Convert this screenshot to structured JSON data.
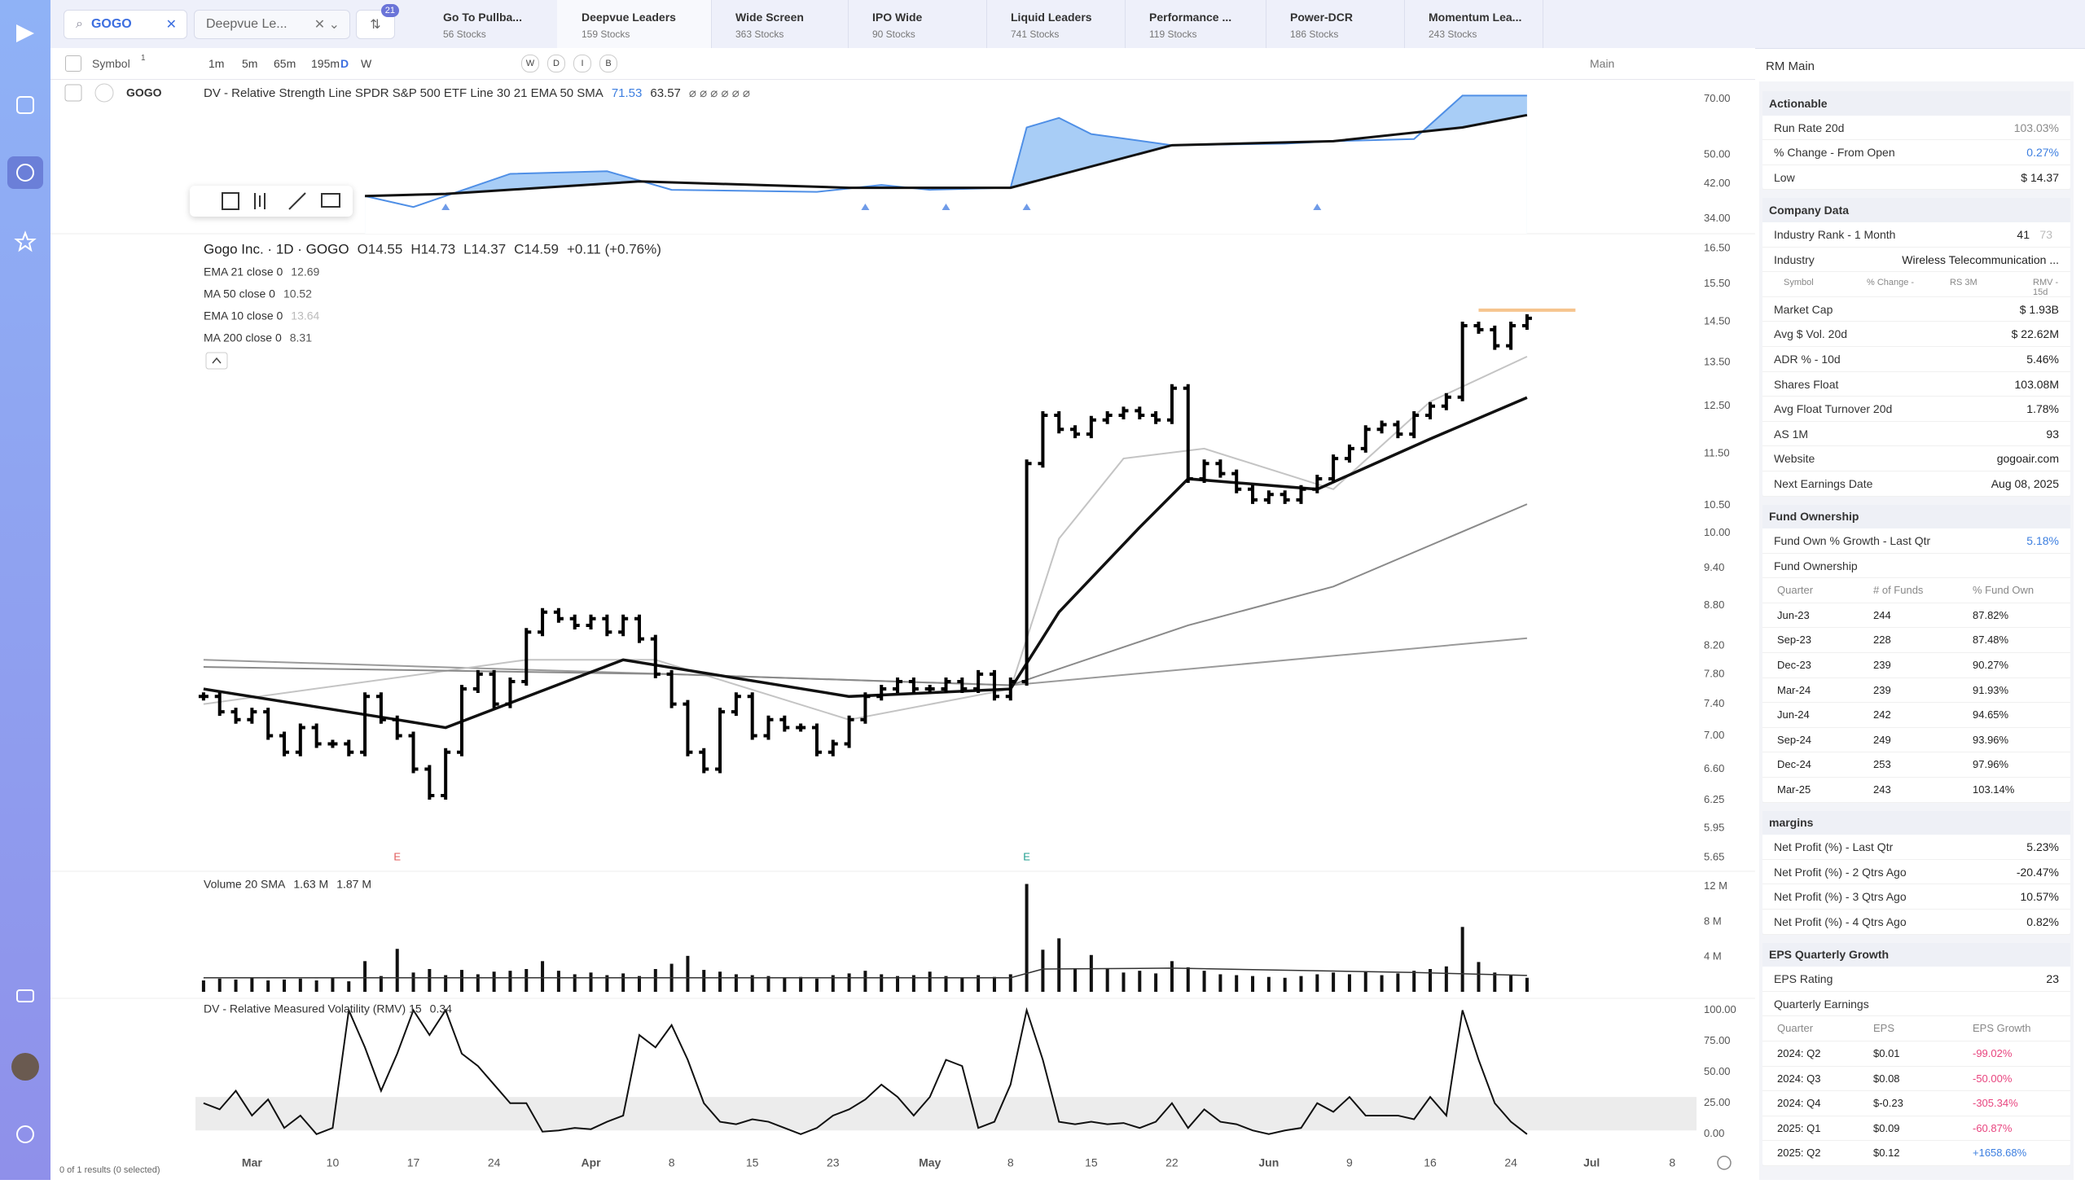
{
  "top_bar": {
    "search": "GOGO",
    "watchlist": "Deepvue Le...",
    "badge": "21",
    "active_tab": 1,
    "tabs": [
      {
        "name": "Go To Pullba...",
        "count": "56 Stocks"
      },
      {
        "name": "Deepvue Leaders",
        "count": "159 Stocks"
      },
      {
        "name": "Wide Screen",
        "count": "363 Stocks"
      },
      {
        "name": "IPO Wide",
        "count": "90 Stocks"
      },
      {
        "name": "Liquid Leaders",
        "count": "741 Stocks"
      },
      {
        "name": "Performance ...",
        "count": "119 Stocks"
      },
      {
        "name": "Power-DCR",
        "count": "186 Stocks"
      },
      {
        "name": "Momentum Lea...",
        "count": "243 Stocks"
      }
    ]
  },
  "toolbar": {
    "symbol_label": "Symbol",
    "symbol_count": "1",
    "timeframes": [
      "1m",
      "5m",
      "65m",
      "195m",
      "D",
      "W"
    ],
    "toggles": [
      "W",
      "D",
      "I",
      "B"
    ],
    "layout": "Main"
  },
  "watchlist_rows": [
    {
      "symbol": "GOGO"
    }
  ],
  "footer": "0 of 1 results (0 selected)",
  "chart_data": [
    {
      "type": "area",
      "title": "DV - Relative Strength Line SPDR S&P 500 ETF Line 30 21 EMA 50 SMA",
      "legend_values": [
        71.53,
        63.57
      ],
      "legend_symbols": "⌀ ⌀ ⌀ ⌀ ⌀ ⌀",
      "log": true,
      "ylim": [
        32,
        76
      ],
      "yticks": [
        {
          "value": 70,
          "label": "70.00"
        },
        {
          "value": 50,
          "label": "50.00"
        },
        {
          "value": 42,
          "label": "42.00"
        },
        {
          "value": 34,
          "label": "34.00"
        }
      ],
      "series": [
        {
          "color": "#4f8fe6",
          "fill": "#a8cdf6",
          "x": [
            10,
            13,
            19,
            25,
            29,
            38,
            42,
            45,
            50,
            51,
            53,
            55,
            60,
            67,
            70,
            75,
            78,
            82
          ],
          "values": [
            39,
            36.5,
            44.6,
            45.3,
            40.5,
            40,
            41.7,
            40.5,
            41,
            59,
            62.5,
            56.7,
            53,
            53.5,
            54.3,
            55,
            71.5,
            71.53
          ]
        },
        {
          "color": "#111111",
          "x": [
            10,
            15,
            27,
            40,
            50,
            60,
            70,
            78,
            82
          ],
          "values": [
            39,
            39.5,
            42.6,
            41,
            41,
            53,
            54.3,
            59,
            63.57
          ]
        }
      ],
      "markers_x": [
        15,
        41,
        46,
        51,
        69
      ],
      "marker_color": "#6f9be8"
    },
    {
      "type": "price",
      "title": "Gogo Inc. · 1D · GOGO",
      "quote": [
        "O14.55",
        "H14.73",
        "L14.37",
        "C14.59",
        "+0.11 (+0.76%)"
      ],
      "log": true,
      "ylim": [
        5.65,
        16.5
      ],
      "color": "#000000",
      "yticks": [
        {
          "value": 16.5,
          "label": "16.50"
        },
        {
          "value": 15.5,
          "label": "15.50"
        },
        {
          "value": 14.5,
          "label": "14.50"
        },
        {
          "value": 13.5,
          "label": "13.50"
        },
        {
          "value": 12.5,
          "label": "12.50"
        },
        {
          "value": 11.5,
          "label": "11.50"
        },
        {
          "value": 10.5,
          "label": "10.50"
        },
        {
          "value": 10,
          "label": "10.00"
        },
        {
          "value": 9.4,
          "label": "9.40"
        },
        {
          "value": 8.8,
          "label": "8.80"
        },
        {
          "value": 8.2,
          "label": "8.20"
        },
        {
          "value": 7.8,
          "label": "7.80"
        },
        {
          "value": 7.4,
          "label": "7.40"
        },
        {
          "value": 7,
          "label": "7.00"
        },
        {
          "value": 6.6,
          "label": "6.60"
        },
        {
          "value": 6.25,
          "label": "6.25"
        },
        {
          "value": 5.95,
          "label": "5.95"
        },
        {
          "value": 5.65,
          "label": "5.65"
        }
      ],
      "values": [
        7.5,
        7.3,
        7.2,
        7.3,
        7.0,
        6.8,
        7.1,
        6.9,
        6.9,
        6.8,
        7.5,
        7.2,
        7.0,
        6.6,
        6.3,
        6.8,
        7.6,
        7.8,
        7.4,
        7.7,
        8.4,
        8.7,
        8.6,
        8.5,
        8.6,
        8.4,
        8.6,
        8.3,
        7.8,
        7.4,
        6.8,
        6.6,
        7.3,
        7.5,
        7.0,
        7.2,
        7.1,
        7.1,
        6.8,
        6.9,
        7.2,
        7.5,
        7.6,
        7.7,
        7.6,
        7.6,
        7.7,
        7.6,
        7.8,
        7.5,
        7.7,
        11.3,
        12.3,
        12.0,
        11.9,
        12.2,
        12.3,
        12.4,
        12.3,
        12.2,
        12.9,
        11.0,
        11.3,
        11.1,
        10.8,
        10.6,
        10.7,
        10.6,
        10.8,
        11.0,
        11.4,
        11.6,
        12.0,
        12.1,
        11.9,
        12.3,
        12.5,
        12.7,
        14.4,
        14.3,
        13.9,
        14.4,
        14.59
      ],
      "series": [
        {
          "name": "EMA 21 close 0",
          "legend_value": 12.69,
          "color": "#111111",
          "x": [
            0,
            12,
            15,
            26,
            40,
            50,
            53,
            58,
            61,
            69,
            76,
            82
          ],
          "values": [
            7.6,
            7.2,
            7.1,
            8.0,
            7.5,
            7.6,
            8.7,
            10.1,
            11.0,
            10.8,
            11.8,
            12.69
          ]
        },
        {
          "name": "MA 50 close 0",
          "legend_value": 10.52,
          "color": "#8a8a8a",
          "x": [
            0,
            29,
            50,
            61,
            70,
            82
          ],
          "values": [
            7.9,
            7.8,
            7.65,
            8.5,
            9.1,
            10.52
          ]
        },
        {
          "name": "EMA 10 close 0",
          "legend_value": 13.64,
          "color": "#c4c4c4",
          "x": [
            0,
            20,
            28,
            40,
            50,
            53,
            57,
            62,
            70,
            76,
            82
          ],
          "values": [
            7.4,
            8.0,
            8.0,
            7.2,
            7.6,
            9.9,
            11.4,
            11.6,
            10.8,
            12.6,
            13.64
          ]
        },
        {
          "name": "MA 200 close 0",
          "legend_value": 8.31,
          "color": "#9a9a9a",
          "x": [
            0,
            29,
            50,
            82
          ],
          "values": [
            8.0,
            7.8,
            7.65,
            8.31
          ]
        }
      ],
      "events": [
        {
          "x": 12,
          "label": "E",
          "color": "#e05a5a"
        },
        {
          "x": 51,
          "label": "E",
          "color": "#1f9e8f"
        }
      ],
      "level": {
        "value": 14.8,
        "x": [
          79,
          85
        ],
        "color": "#f6c48e"
      }
    },
    {
      "type": "bar",
      "title": "Volume 20 SMA",
      "legend_values": [
        "1.63 M",
        "1.87 M"
      ],
      "color": "#111111",
      "ylim": [
        0,
        13
      ],
      "yticks": [
        {
          "value": 12,
          "label": "12 M"
        },
        {
          "value": 8,
          "label": "8 M"
        },
        {
          "value": 4,
          "label": "4 M"
        }
      ],
      "values": [
        1.3,
        1.5,
        1.4,
        1.6,
        1.3,
        1.4,
        1.5,
        1.3,
        1.6,
        1.2,
        3.5,
        1.8,
        4.9,
        2.2,
        2.6,
        1.9,
        2.5,
        2.0,
        2.3,
        2.4,
        2.6,
        3.5,
        2.4,
        2.0,
        2.2,
        1.9,
        2.1,
        1.8,
        2.6,
        3.2,
        4.1,
        2.5,
        2.3,
        2.0,
        1.9,
        1.8,
        1.6,
        1.7,
        1.5,
        1.9,
        2.1,
        2.4,
        2.0,
        1.8,
        1.9,
        2.3,
        1.8,
        1.6,
        1.9,
        1.7,
        2.0,
        12.3,
        4.8,
        6.1,
        2.7,
        4.2,
        2.6,
        2.2,
        2.4,
        2.1,
        3.5,
        2.8,
        2.4,
        2.0,
        1.9,
        1.8,
        1.7,
        1.6,
        1.8,
        2.0,
        2.2,
        2.0,
        2.3,
        1.9,
        2.1,
        2.4,
        2.6,
        2.9,
        7.4,
        3.4,
        2.2,
        1.9,
        1.6
      ],
      "series": [
        {
          "color": "#333333",
          "x": [
            0,
            50,
            52,
            60,
            75,
            82
          ],
          "values": [
            1.6,
            1.6,
            2.6,
            2.7,
            2.2,
            1.87
          ]
        }
      ]
    },
    {
      "type": "line",
      "title": "DV - Relative Measured Volatility (RMV) 15",
      "legend_values": [
        0.34
      ],
      "color": "#111111",
      "band": [
        3,
        30
      ],
      "band_color": "#ececec",
      "ylim": [
        -10,
        105
      ],
      "yticks": [
        {
          "value": 100,
          "label": "100.00"
        },
        {
          "value": 75,
          "label": "75.00"
        },
        {
          "value": 50,
          "label": "50.00"
        },
        {
          "value": 25,
          "label": "25.00"
        },
        {
          "value": 0,
          "label": "0.00"
        }
      ],
      "values": [
        25,
        20,
        35,
        15,
        28,
        5,
        15,
        0,
        5,
        100,
        70,
        35,
        65,
        100,
        80,
        100,
        65,
        55,
        40,
        25,
        25,
        2,
        3,
        5,
        4,
        10,
        15,
        80,
        70,
        88,
        60,
        25,
        10,
        8,
        12,
        10,
        5,
        0,
        5,
        15,
        20,
        28,
        40,
        30,
        15,
        30,
        60,
        55,
        5,
        10,
        40,
        100,
        60,
        10,
        8,
        10,
        8,
        9,
        5,
        10,
        25,
        5,
        20,
        10,
        8,
        3,
        0,
        3,
        5,
        25,
        18,
        30,
        15,
        15,
        15,
        12,
        30,
        15,
        100,
        60,
        25,
        10,
        0
      ],
      "xlim": [
        -0.5,
        92.5
      ],
      "xticks": [
        {
          "value": 3,
          "label": "Mar"
        },
        {
          "value": 8,
          "label": "10"
        },
        {
          "value": 13,
          "label": "17"
        },
        {
          "value": 18,
          "label": "24"
        },
        {
          "value": 24,
          "label": "Apr"
        },
        {
          "value": 29,
          "label": "8"
        },
        {
          "value": 34,
          "label": "15"
        },
        {
          "value": 39,
          "label": "23"
        },
        {
          "value": 45,
          "label": "May"
        },
        {
          "value": 50,
          "label": "8"
        },
        {
          "value": 55,
          "label": "15"
        },
        {
          "value": 60,
          "label": "22"
        },
        {
          "value": 66,
          "label": "Jun"
        },
        {
          "value": 71,
          "label": "9"
        },
        {
          "value": 76,
          "label": "16"
        },
        {
          "value": 81,
          "label": "24"
        },
        {
          "value": 86,
          "label": "Jul"
        },
        {
          "value": 91,
          "label": "8"
        }
      ]
    }
  ],
  "panel": {
    "title": "RM Main",
    "colors": {
      "negative": "#e8457f",
      "positive": "#3d7fe0",
      "muted": "#8a8a8a"
    },
    "sections": [
      {
        "title": "Actionable",
        "items": [
          {
            "label": "Run Rate 20d",
            "value": "103.03%",
            "tone": "muted"
          },
          {
            "label": "% Change - From Open",
            "value": "0.27%",
            "tone": "positive"
          },
          {
            "label": "Low",
            "value": "$ 14.37"
          }
        ]
      },
      {
        "title": "Company Data",
        "items": [
          {
            "label": "Industry Rank - 1 Month",
            "value": "41",
            "extra": "73"
          },
          {
            "label": "Industry",
            "value": "Wireless Telecommunication ..."
          },
          {
            "columns": [
              "Symbol",
              "% Change -",
              "RS 3M",
              "RMV - 15d"
            ]
          },
          {
            "label": "Market Cap",
            "value": "$ 1.93B"
          },
          {
            "label": "Avg $ Vol. 20d",
            "value": "$ 22.62M"
          },
          {
            "label": "ADR % - 10d",
            "value": "5.46%"
          },
          {
            "label": "Shares Float",
            "value": "103.08M"
          },
          {
            "label": "Avg Float Turnover 20d",
            "value": "1.78%"
          },
          {
            "label": "AS 1M",
            "value": "93"
          },
          {
            "label": "Website",
            "value": "gogoair.com"
          },
          {
            "label": "Next Earnings Date",
            "value": "Aug 08, 2025"
          }
        ]
      },
      {
        "title": "Fund Ownership",
        "items": [
          {
            "label": "Fund Own % Growth - Last Qtr",
            "value": "5.18%",
            "tone": "positive"
          },
          {
            "subtitle": "Fund Ownership"
          },
          {
            "header": [
              "Quarter",
              "# of Funds",
              "% Fund Own"
            ]
          },
          {
            "cells": [
              "Jun-23",
              "244",
              "87.82%"
            ]
          },
          {
            "cells": [
              "Sep-23",
              "228",
              "87.48%"
            ]
          },
          {
            "cells": [
              "Dec-23",
              "239",
              "90.27%"
            ]
          },
          {
            "cells": [
              "Mar-24",
              "239",
              "91.93%"
            ]
          },
          {
            "cells": [
              "Jun-24",
              "242",
              "94.65%"
            ]
          },
          {
            "cells": [
              "Sep-24",
              "249",
              "93.96%"
            ]
          },
          {
            "cells": [
              "Dec-24",
              "253",
              "97.96%"
            ]
          },
          {
            "cells": [
              "Mar-25",
              "243",
              "103.14%"
            ]
          }
        ]
      },
      {
        "title": "margins",
        "items": [
          {
            "label": "Net Profit (%) - Last Qtr",
            "value": "5.23%"
          },
          {
            "label": "Net Profit (%) - 2 Qtrs Ago",
            "value": "-20.47%"
          },
          {
            "label": "Net Profit (%) - 3 Qtrs Ago",
            "value": "10.57%"
          },
          {
            "label": "Net Profit (%) - 4 Qtrs Ago",
            "value": "0.82%"
          }
        ]
      },
      {
        "title": "EPS Quarterly Growth",
        "items": [
          {
            "label": "EPS Rating",
            "value": "23"
          },
          {
            "subtitle": "Quarterly Earnings"
          },
          {
            "header": [
              "Quarter",
              "EPS",
              "EPS Growth"
            ]
          },
          {
            "cells": [
              "2024: Q2",
              "$0.01",
              "-99.02%"
            ]
          },
          {
            "cells": [
              "2024: Q3",
              "$0.08",
              "-50.00%"
            ]
          },
          {
            "cells": [
              "2024: Q4",
              "$-0.23",
              "-305.34%"
            ]
          },
          {
            "cells": [
              "2025: Q1",
              "$0.09",
              "-60.87%"
            ]
          },
          {
            "cells": [
              "2025: Q2",
              "$0.12",
              "+1658.68%"
            ]
          }
        ]
      }
    ]
  }
}
